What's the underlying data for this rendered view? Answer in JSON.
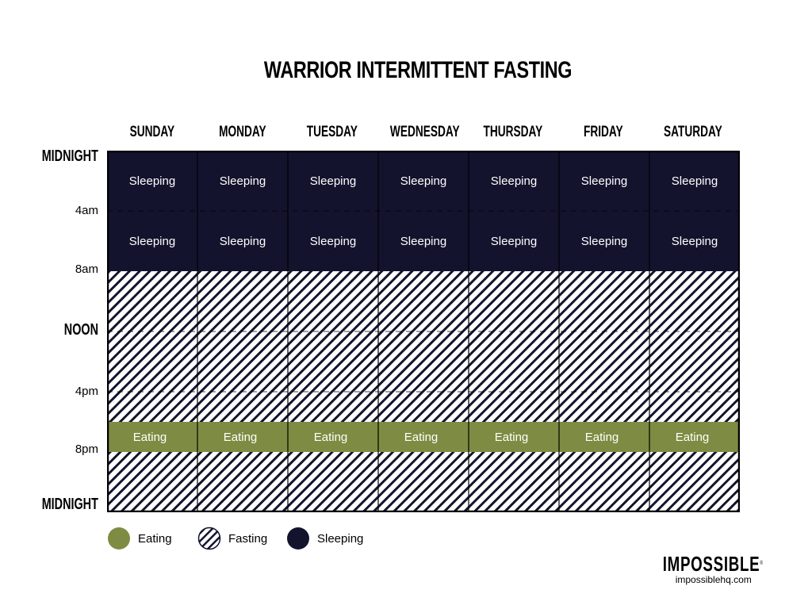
{
  "title": "WARRIOR INTERMITTENT FASTING",
  "days": [
    "SUNDAY",
    "MONDAY",
    "TUESDAY",
    "WEDNESDAY",
    "THURSDAY",
    "FRIDAY",
    "SATURDAY"
  ],
  "time_labels": {
    "midnight_top": "MIDNIGHT",
    "t4am": "4am",
    "t8am": "8am",
    "noon": "NOON",
    "t4pm": "4pm",
    "t8pm": "8pm",
    "midnight_bottom": "MIDNIGHT"
  },
  "schedule": {
    "sleep_hours": [
      0,
      8
    ],
    "eating_hours": [
      18,
      20
    ],
    "hours_total": 24,
    "sleep_block_labels": [
      "Sleeping",
      "Sleeping"
    ],
    "eating_label": "Eating"
  },
  "legend": [
    {
      "key": "eating",
      "label": "Eating"
    },
    {
      "key": "fasting",
      "label": "Fasting"
    },
    {
      "key": "sleeping",
      "label": "Sleeping"
    }
  ],
  "colors": {
    "sleeping": "#13132e",
    "eating": "#7d8c42",
    "fasting_stripe": "#13132e",
    "grid_line": "#000000"
  },
  "brand": {
    "logo": "IMPOSSIBLE",
    "url": "impossiblehq.com"
  }
}
